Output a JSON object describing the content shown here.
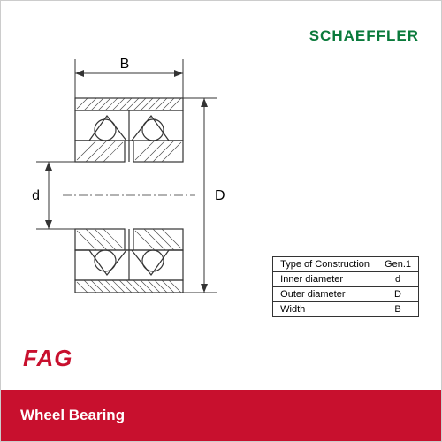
{
  "brand_top": {
    "text": "SCHAEFFLER",
    "color": "#0a7a3b",
    "fontsize": 17
  },
  "brand_bottom": {
    "text": "FAG",
    "color": "#c8102e",
    "fontsize": 26
  },
  "footer": {
    "text": "Wheel Bearing",
    "bg": "#c8102e",
    "color": "#ffffff",
    "fontsize": 17
  },
  "diagram": {
    "stroke": "#333333",
    "dim_stroke": "#333333",
    "hatch_stroke": "#444444",
    "labels": {
      "width": "B",
      "inner": "d",
      "outer": "D"
    }
  },
  "params": {
    "rows": [
      {
        "label": "Type of Construction",
        "sym": "Gen.1"
      },
      {
        "label": "Inner  diameter",
        "sym": "d"
      },
      {
        "label": "Outer diameter",
        "sym": "D"
      },
      {
        "label": "Width",
        "sym": "B"
      }
    ]
  }
}
